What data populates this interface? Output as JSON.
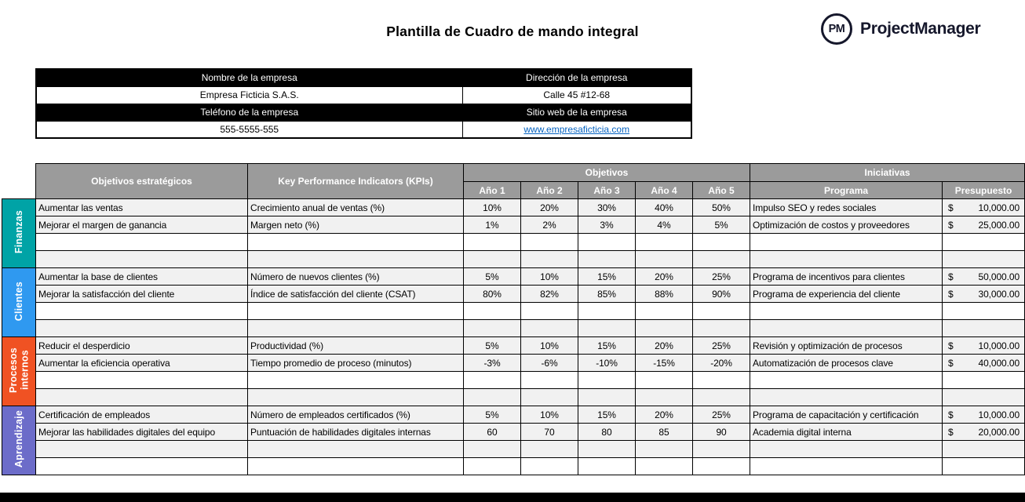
{
  "page": {
    "title": "Plantilla de Cuadro de mando integral"
  },
  "logo": {
    "badge": "PM",
    "name": "ProjectManager"
  },
  "company": {
    "name_label": "Nombre de la empresa",
    "address_label": "Dirección de la empresa",
    "name_value": "Empresa Ficticia S.A.S.",
    "address_value": "Calle 45 #12-68",
    "phone_label": "Teléfono de la empresa",
    "website_label": "Sitio web de la empresa",
    "phone_value": "555-5555-555",
    "website_value": "www.empresaficticia.com"
  },
  "colors": {
    "header_gray": "#9B9B9B",
    "link_blue": "#0563C1",
    "black": "#000000"
  },
  "table": {
    "col_objectives": "Objetivos estratégicos",
    "col_kpis": "Key Performance Indicators (KPIs)",
    "group_objetivos": "Objetivos",
    "group_iniciativas": "Iniciativas",
    "years": [
      "Año 1",
      "Año 2",
      "Año 3",
      "Año 4",
      "Año 5"
    ],
    "col_programa": "Programa",
    "col_presupuesto": "Presupuesto",
    "sections": [
      {
        "name": "Finanzas",
        "color": "#00A3A6",
        "rows": [
          {
            "objective": "Aumentar las ventas",
            "kpi": "Crecimiento anual de ventas (%)",
            "years": [
              "10%",
              "20%",
              "30%",
              "40%",
              "50%"
            ],
            "programa": "Impulso SEO y redes sociales",
            "currency": "$",
            "presupuesto": "10,000.00"
          },
          {
            "objective": "Mejorar el margen de ganancia",
            "kpi": "Margen neto (%)",
            "years": [
              "1%",
              "2%",
              "3%",
              "4%",
              "5%"
            ],
            "programa": "Optimización de costos y proveedores",
            "currency": "$",
            "presupuesto": "25,000.00"
          },
          {
            "objective": "",
            "kpi": "",
            "years": [
              "",
              "",
              "",
              "",
              ""
            ],
            "programa": "",
            "currency": "",
            "presupuesto": ""
          },
          {
            "objective": "",
            "kpi": "",
            "years": [
              "",
              "",
              "",
              "",
              ""
            ],
            "programa": "",
            "currency": "",
            "presupuesto": ""
          }
        ]
      },
      {
        "name": "Clientes",
        "color": "#2F99F0",
        "rows": [
          {
            "objective": "Aumentar la base de clientes",
            "kpi": "Número de nuevos clientes (%)",
            "years": [
              "5%",
              "10%",
              "15%",
              "20%",
              "25%"
            ],
            "programa": "Programa de incentivos para clientes",
            "currency": "$",
            "presupuesto": "50,000.00"
          },
          {
            "objective": "Mejorar la satisfacción del cliente",
            "kpi": "Índice de satisfacción del cliente (CSAT)",
            "years": [
              "80%",
              "82%",
              "85%",
              "88%",
              "90%"
            ],
            "programa": "Programa de experiencia del cliente",
            "currency": "$",
            "presupuesto": "30,000.00"
          },
          {
            "objective": "",
            "kpi": "",
            "years": [
              "",
              "",
              "",
              "",
              ""
            ],
            "programa": "",
            "currency": "",
            "presupuesto": ""
          },
          {
            "objective": "",
            "kpi": "",
            "years": [
              "",
              "",
              "",
              "",
              ""
            ],
            "programa": "",
            "currency": "",
            "presupuesto": ""
          }
        ]
      },
      {
        "name": "Procesos internos",
        "color": "#F05223",
        "rows": [
          {
            "objective": "Reducir el desperdicio",
            "kpi": "Productividad (%)",
            "years": [
              "5%",
              "10%",
              "15%",
              "20%",
              "25%"
            ],
            "programa": "Revisión y optimización de procesos",
            "currency": "$",
            "presupuesto": "10,000.00"
          },
          {
            "objective": "Aumentar la eficiencia operativa",
            "kpi": "Tiempo promedio de proceso (minutos)",
            "years": [
              "-3%",
              "-6%",
              "-10%",
              "-15%",
              "-20%"
            ],
            "programa": "Automatización de procesos clave",
            "currency": "$",
            "presupuesto": "40,000.00"
          },
          {
            "objective": "",
            "kpi": "",
            "years": [
              "",
              "",
              "",
              "",
              ""
            ],
            "programa": "",
            "currency": "",
            "presupuesto": ""
          },
          {
            "objective": "",
            "kpi": "",
            "years": [
              "",
              "",
              "",
              "",
              ""
            ],
            "programa": "",
            "currency": "",
            "presupuesto": ""
          }
        ]
      },
      {
        "name": "Aprendizaje",
        "color": "#6C6CC9",
        "rows": [
          {
            "objective": "Certificación de empleados",
            "kpi": "Número de empleados certificados (%)",
            "years": [
              "5%",
              "10%",
              "15%",
              "20%",
              "25%"
            ],
            "programa": "Programa de capacitación y certificación",
            "currency": "$",
            "presupuesto": "10,000.00"
          },
          {
            "objective": "Mejorar las habilidades digitales del equipo",
            "kpi": "Puntuación de habilidades digitales internas",
            "years": [
              "60",
              "70",
              "80",
              "85",
              "90"
            ],
            "programa": "Academia digital interna",
            "currency": "$",
            "presupuesto": "20,000.00"
          },
          {
            "objective": "",
            "kpi": "",
            "years": [
              "",
              "",
              "",
              "",
              ""
            ],
            "programa": "",
            "currency": "",
            "presupuesto": ""
          },
          {
            "objective": "",
            "kpi": "",
            "years": [
              "",
              "",
              "",
              "",
              ""
            ],
            "programa": "",
            "currency": "",
            "presupuesto": ""
          }
        ]
      }
    ]
  }
}
